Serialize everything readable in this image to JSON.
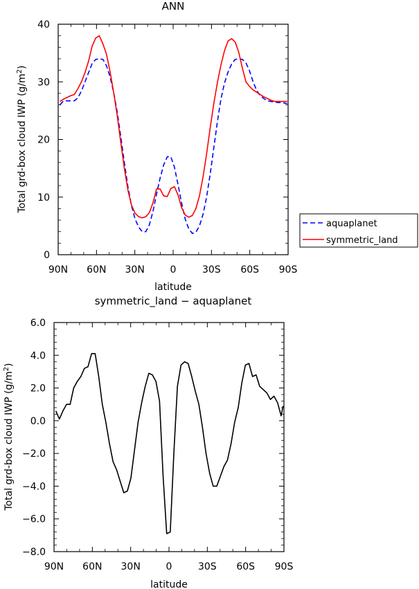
{
  "chart_data": [
    {
      "type": "line",
      "title": "ANN",
      "xlabel": "latitude",
      "ylabel_prefix": "Total grd-box cloud IWP (g/m",
      "ylabel_sup": "2",
      "ylabel_suffix": ")",
      "xlim": [
        90,
        -90
      ],
      "ylim": [
        0,
        40
      ],
      "xticks": [
        90,
        60,
        30,
        0,
        -30,
        -60,
        -90
      ],
      "xtick_labels": [
        "90N",
        "60N",
        "30N",
        "0",
        "30S",
        "60S",
        "90S"
      ],
      "yticks": [
        0,
        10,
        20,
        30,
        40
      ],
      "ytick_labels": [
        "0",
        "10",
        "20",
        "30",
        "40"
      ],
      "legend_position": "right",
      "series": [
        {
          "name": "aquaplanet",
          "color": "#0000ff",
          "dash": "dashed",
          "x": [
            88.6,
            85.8,
            83,
            80.2,
            77.4,
            74.6,
            71.8,
            69,
            66.2,
            63.4,
            60.6,
            57.8,
            55,
            52.2,
            49.4,
            46.6,
            43.8,
            41,
            38.2,
            35.4,
            32.6,
            29.8,
            27,
            24.2,
            21.4,
            18.6,
            15.8,
            13,
            10.2,
            7.4,
            4.6,
            1.8,
            -1,
            -3.8,
            -6.6,
            -9.4,
            -12.2,
            -15,
            -17.8,
            -20.6,
            -23.4,
            -26.2,
            -29,
            -31.8,
            -34.6,
            -37.4,
            -40.2,
            -43,
            -45.8,
            -48.6,
            -51.4,
            -54.2,
            -57,
            -59.8,
            -62.6,
            -65.4,
            -68.2,
            -71,
            -73.8,
            -76.6,
            -79.4,
            -82.2,
            -85,
            -87.8,
            -89.3
          ],
          "y": [
            26,
            26.7,
            26.7,
            26.7,
            26.7,
            27.2,
            28.4,
            30,
            31.6,
            33.2,
            33.9,
            34,
            33.9,
            32.8,
            30.9,
            28.2,
            24.8,
            20.5,
            16,
            11.8,
            8.5,
            6.2,
            4.8,
            4,
            4,
            5.2,
            7.5,
            10.5,
            13.3,
            15.6,
            17,
            17,
            15.2,
            12.2,
            9,
            6.2,
            4.5,
            3.7,
            3.9,
            5,
            7,
            10,
            14,
            18.5,
            23,
            27,
            29.8,
            31.7,
            33.1,
            33.9,
            34,
            33.9,
            33.3,
            31.9,
            30,
            28.5,
            27.6,
            27.1,
            26.7,
            26.6,
            26.5,
            26.4,
            26.4,
            26.3,
            26.2
          ]
        },
        {
          "name": "symmetric_land",
          "color": "#ff0000",
          "dash": "solid",
          "x": [
            88.6,
            85.8,
            83,
            80.2,
            77.4,
            74.6,
            71.8,
            69,
            66.2,
            63.4,
            60.6,
            57.8,
            55,
            52.2,
            49.4,
            46.6,
            43.8,
            41,
            38.2,
            35.4,
            32.6,
            29.8,
            27,
            24.2,
            21.4,
            18.6,
            15.8,
            13,
            10.2,
            7.4,
            4.6,
            1.8,
            -1,
            -3.8,
            -6.6,
            -9.4,
            -12.2,
            -15,
            -17.8,
            -20.6,
            -23.4,
            -26.2,
            -29,
            -31.8,
            -34.6,
            -37.4,
            -40.2,
            -43,
            -45.8,
            -48.6,
            -51.4,
            -54.2,
            -57,
            -59.8,
            -62.6,
            -65.4,
            -68.2,
            -71,
            -73.8,
            -76.6,
            -79.4,
            -82.2,
            -85,
            -87.8,
            -89.3
          ],
          "y": [
            26.6,
            27,
            27.3,
            27.6,
            27.8,
            28.8,
            30,
            31.6,
            33.6,
            36.2,
            37.6,
            38,
            36.6,
            34.8,
            31.8,
            28.2,
            24.2,
            19.5,
            15,
            11.2,
            8.6,
            7.2,
            6.6,
            6.4,
            6.6,
            7.3,
            9,
            11.4,
            11.4,
            10.2,
            10.1,
            11.5,
            11.8,
            10.4,
            8.2,
            6.9,
            6.5,
            6.8,
            8,
            10.2,
            13.5,
            17.5,
            22,
            26.2,
            29.8,
            32.9,
            35.4,
            37.1,
            37.5,
            36.9,
            35.1,
            32.4,
            30,
            29.2,
            28.6,
            28.2,
            27.8,
            27.4,
            27.1,
            26.8,
            26.6,
            26.6,
            26.6,
            26.6,
            26.6
          ]
        }
      ]
    },
    {
      "type": "line",
      "title": "symmetric_land − aquaplanet",
      "xlabel": "latitude",
      "ylabel_prefix": "Total grd-box cloud IWP (g/m",
      "ylabel_sup": "2",
      "ylabel_suffix": ")",
      "xlim": [
        90,
        -90
      ],
      "ylim": [
        -8,
        6
      ],
      "xticks": [
        90,
        60,
        30,
        0,
        -30,
        -60,
        -90
      ],
      "xtick_labels": [
        "90N",
        "60N",
        "30N",
        "0",
        "30S",
        "60S",
        "90S"
      ],
      "yticks": [
        -8,
        -6,
        -4,
        -2,
        0,
        2,
        4,
        6
      ],
      "ytick_labels": [
        "−8.0",
        "−6.0",
        "−4.0",
        "−2.0",
        "0.0",
        "2.0",
        "4.0",
        "6.0"
      ],
      "series": [
        {
          "color": "#000000",
          "dash": "solid",
          "x": [
            88.6,
            85.8,
            83,
            80.2,
            77.4,
            74.6,
            71.8,
            69,
            66.2,
            63.4,
            60.6,
            57.8,
            55,
            52.2,
            49.4,
            46.6,
            43.8,
            41,
            38.2,
            35.4,
            32.6,
            29.8,
            27,
            24.2,
            21.4,
            18.6,
            15.8,
            13,
            10.2,
            7.4,
            4.6,
            1.8,
            -1,
            -3.8,
            -6.6,
            -9.4,
            -12.2,
            -15,
            -17.8,
            -20.6,
            -23.4,
            -26.2,
            -29,
            -31.8,
            -34.6,
            -37.4,
            -40.2,
            -43,
            -45.8,
            -48.6,
            -51.4,
            -54.2,
            -57,
            -59.8,
            -62.6,
            -65.4,
            -68.2,
            -71,
            -73.8,
            -76.6,
            -79.4,
            -82.2,
            -85,
            -87.8,
            -89.3
          ],
          "y": [
            0.6,
            0.1,
            0.6,
            1,
            1,
            2,
            2.4,
            2.7,
            3.2,
            3.3,
            4.1,
            4.1,
            2.7,
            1,
            -0.1,
            -1.4,
            -2.5,
            -3,
            -3.7,
            -4.4,
            -4.3,
            -3.5,
            -1.8,
            -0.1,
            1.1,
            2.1,
            2.9,
            2.8,
            2.4,
            1.2,
            -3.4,
            -6.9,
            -6.8,
            -2,
            2.1,
            3.4,
            3.6,
            3.5,
            2.7,
            1.8,
            1,
            -0.4,
            -2,
            -3.2,
            -4,
            -4,
            -3.4,
            -2.8,
            -2.4,
            -1.4,
            -0.1,
            0.8,
            2.3,
            3.4,
            3.5,
            2.7,
            2.8,
            2.1,
            1.9,
            1.7,
            1.3,
            1.5,
            1.1,
            0.3,
            0.9
          ]
        }
      ]
    }
  ]
}
